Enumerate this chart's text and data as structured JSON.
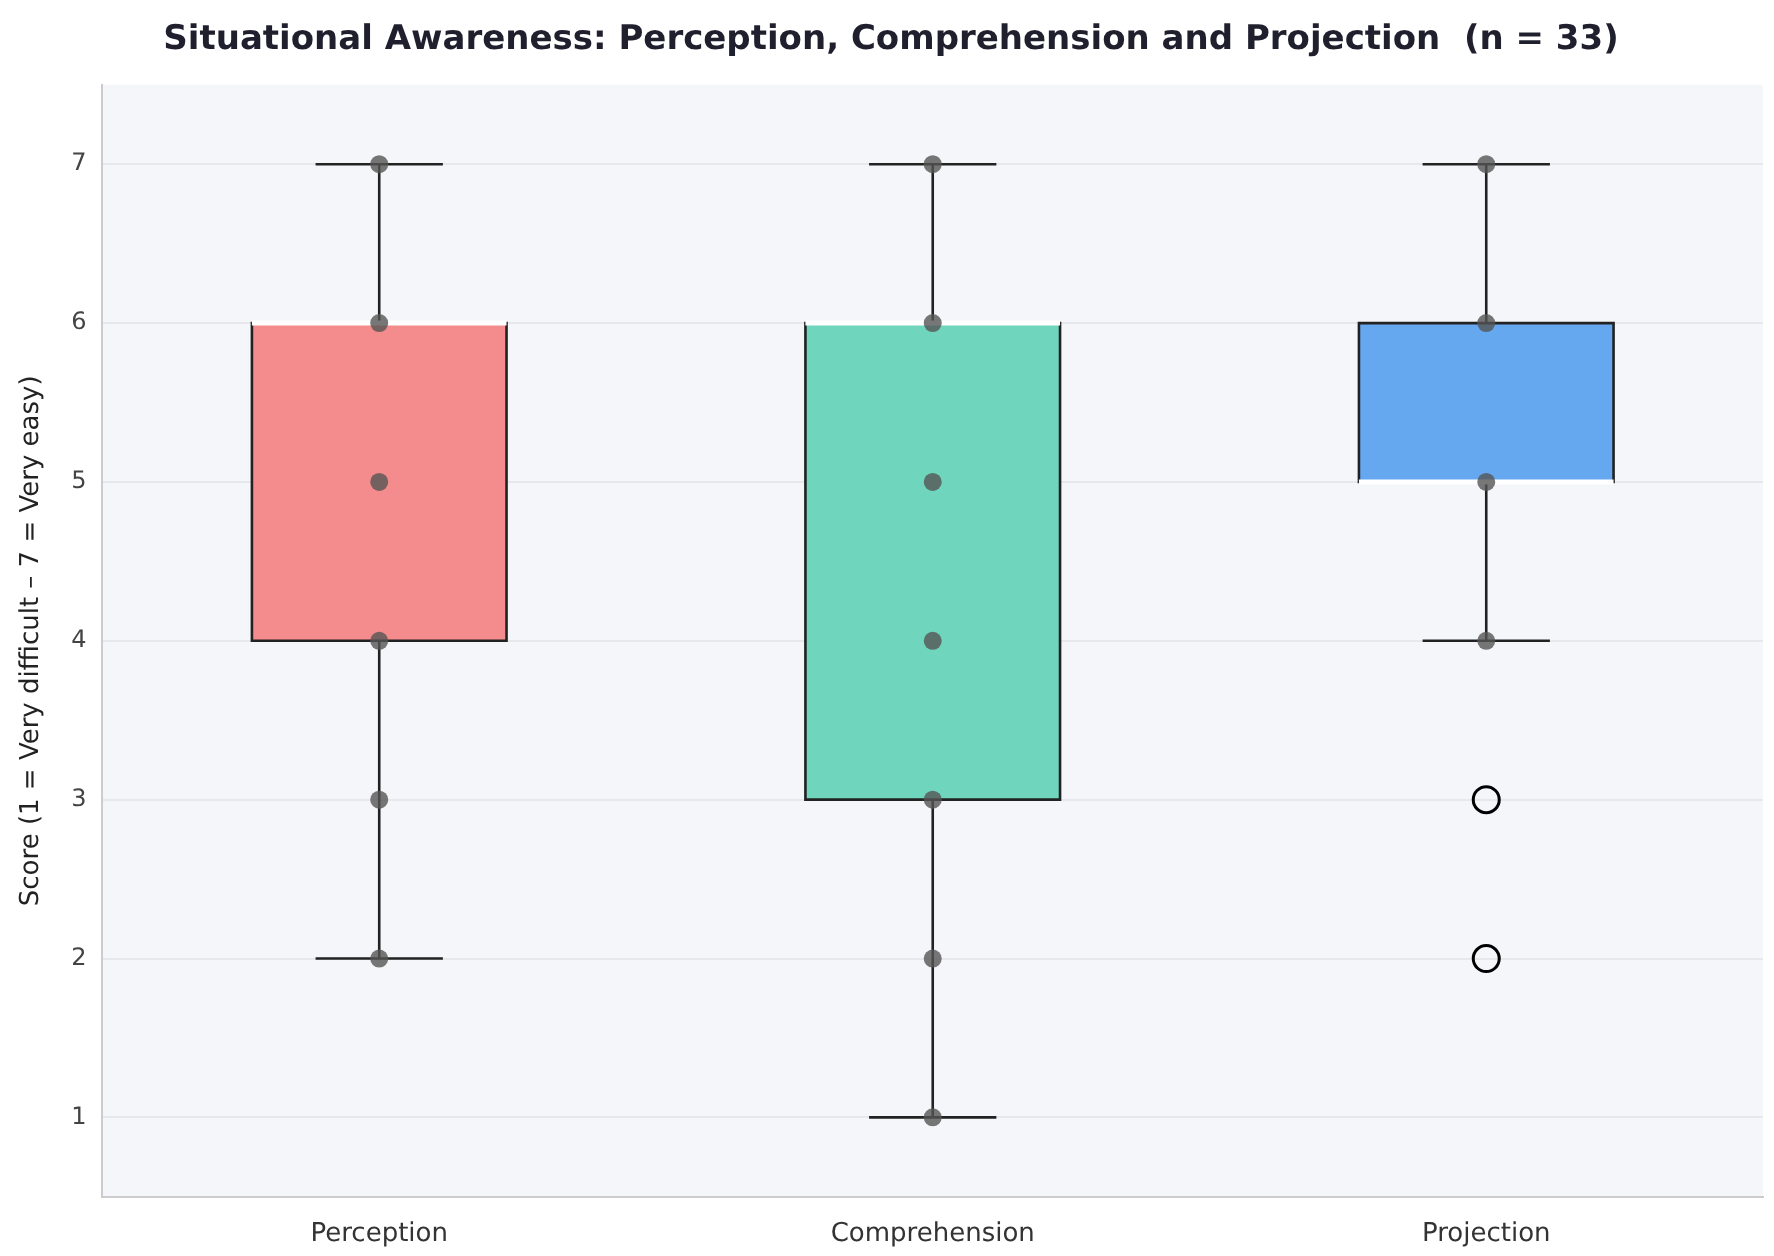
{
  "chart_data": {
    "type": "box",
    "title": "Situational Awareness: Perception, Comprehension and Projection  (n = 33)",
    "ylabel": "Score (1 = Very difficult – 7 = Very easy)",
    "categories": [
      "Perception",
      "Comprehension",
      "Projection"
    ],
    "colors": [
      "#f48b8d",
      "#6fd6bd",
      "#66a8f0"
    ],
    "boxes": [
      {
        "low": 2,
        "q1": 4,
        "median": 6,
        "q3": 6,
        "high": 7
      },
      {
        "low": 1,
        "q1": 3,
        "median": 6,
        "q3": 6,
        "high": 7
      },
      {
        "low": 4,
        "q1": 5,
        "median": 5,
        "q3": 6,
        "high": 7,
        "outliers": [
          3,
          2
        ]
      }
    ],
    "series": [
      {
        "type": "scatter",
        "color": "#555555",
        "x": [
          "Perception",
          "Perception",
          "Perception",
          "Perception",
          "Perception",
          "Perception",
          "Comprehension",
          "Comprehension",
          "Comprehension",
          "Comprehension",
          "Comprehension",
          "Comprehension",
          "Comprehension",
          "Projection",
          "Projection",
          "Projection",
          "Projection"
        ],
        "values": [
          7,
          6,
          5,
          4,
          3,
          2,
          7,
          6,
          5,
          4,
          3,
          2,
          1,
          7,
          6,
          5,
          4
        ]
      }
    ],
    "ylim": [
      0.5,
      7.5
    ],
    "yticks": [
      1,
      2,
      3,
      4,
      5,
      6,
      7
    ],
    "grid": "y",
    "legend": false,
    "marker": "circle"
  }
}
